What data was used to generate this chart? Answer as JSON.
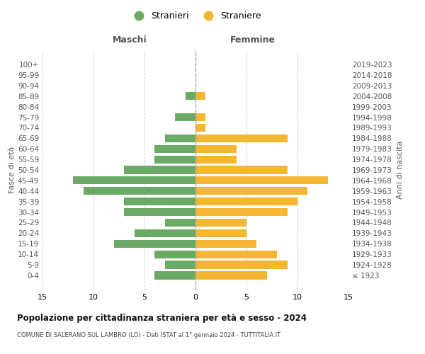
{
  "age_groups": [
    "100+",
    "95-99",
    "90-94",
    "85-89",
    "80-84",
    "75-79",
    "70-74",
    "65-69",
    "60-64",
    "55-59",
    "50-54",
    "45-49",
    "40-44",
    "35-39",
    "30-34",
    "25-29",
    "20-24",
    "15-19",
    "10-14",
    "5-9",
    "0-4"
  ],
  "birth_years": [
    "≤ 1923",
    "1924-1928",
    "1929-1933",
    "1934-1938",
    "1939-1943",
    "1944-1948",
    "1949-1953",
    "1954-1958",
    "1959-1963",
    "1964-1968",
    "1969-1973",
    "1974-1978",
    "1979-1983",
    "1984-1988",
    "1989-1993",
    "1994-1998",
    "1999-2003",
    "2004-2008",
    "2009-2013",
    "2014-2018",
    "2019-2023"
  ],
  "males": [
    0,
    0,
    0,
    1,
    0,
    2,
    0,
    3,
    4,
    4,
    7,
    12,
    11,
    7,
    7,
    3,
    6,
    8,
    4,
    3,
    4
  ],
  "females": [
    0,
    0,
    0,
    1,
    0,
    1,
    1,
    9,
    4,
    4,
    9,
    13,
    11,
    10,
    9,
    5,
    5,
    6,
    8,
    9,
    7
  ],
  "male_color": "#6aaa64",
  "female_color": "#f5b731",
  "background_color": "#ffffff",
  "grid_color": "#cccccc",
  "title": "Popolazione per cittadinanza straniera per età e sesso - 2024",
  "subtitle": "COMUNE DI SALERANO SUL LAMBRO (LO) - Dati ISTAT al 1° gennaio 2024 - TUTTITALIA.IT",
  "xlabel_left": "Maschi",
  "xlabel_right": "Femmine",
  "ylabel_left": "Fasce di età",
  "ylabel_right": "Anni di nascita",
  "xlim": 15,
  "legend_stranieri": "Stranieri",
  "legend_straniere": "Straniere"
}
